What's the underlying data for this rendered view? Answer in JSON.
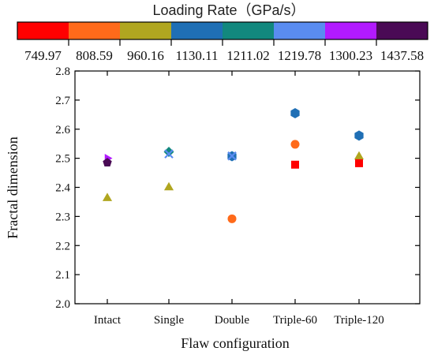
{
  "chart_data": {
    "type": "scatter",
    "title": "",
    "xlabel": "Flaw configuration",
    "ylabel": "Fractal dimension",
    "categories": [
      "Intact",
      "Single",
      "Double",
      "Triple-60",
      "Triple-120"
    ],
    "ylim": [
      2.0,
      2.8
    ],
    "yticks": [
      "2.0",
      "2.1",
      "2.2",
      "2.3",
      "2.4",
      "2.5",
      "2.6",
      "2.7",
      "2.8"
    ],
    "grid": false,
    "legend": {
      "title": "Loading Rate（GPa/s）",
      "placement": "top",
      "entries": [
        {
          "label": "749.97",
          "color": "#ff0000",
          "marker": "square"
        },
        {
          "label": "808.59",
          "color": "#ff6a1a",
          "marker": "circle"
        },
        {
          "label": "960.16",
          "color": "#b0a620",
          "marker": "triangle"
        },
        {
          "label": "1130.11",
          "color": "#1f6fb5",
          "marker": "hexagon"
        },
        {
          "label": "1211.02",
          "color": "#12887e",
          "marker": "diamond"
        },
        {
          "label": "1219.78",
          "color": "#5a8cf0",
          "marker": "x"
        },
        {
          "label": "1300.23",
          "color": "#b21aff",
          "marker": "tri-right"
        },
        {
          "label": "1437.58",
          "color": "#4a0a55",
          "marker": "pentagon"
        }
      ]
    },
    "points": [
      {
        "category": "Intact",
        "rate": "1300.23",
        "y": 2.5
      },
      {
        "category": "Intact",
        "rate": "1437.58",
        "y": 2.485
      },
      {
        "category": "Intact",
        "rate": "960.16",
        "y": 2.365
      },
      {
        "category": "Single",
        "rate": "1211.02",
        "y": 2.522
      },
      {
        "category": "Single",
        "rate": "1219.78",
        "y": 2.515
      },
      {
        "category": "Single",
        "rate": "960.16",
        "y": 2.402
      },
      {
        "category": "Double",
        "rate": "1130.11",
        "y": 2.507
      },
      {
        "category": "Double",
        "rate": "1219.78",
        "y": 2.508
      },
      {
        "category": "Double",
        "rate": "808.59",
        "y": 2.292
      },
      {
        "category": "Triple-60",
        "rate": "1130.11",
        "y": 2.655
      },
      {
        "category": "Triple-60",
        "rate": "808.59",
        "y": 2.548
      },
      {
        "category": "Triple-60",
        "rate": "749.97",
        "y": 2.478
      },
      {
        "category": "Triple-120",
        "rate": "1130.11",
        "y": 2.578
      },
      {
        "category": "Triple-120",
        "rate": "960.16",
        "y": 2.508
      },
      {
        "category": "Triple-120",
        "rate": "749.97",
        "y": 2.483
      }
    ]
  }
}
